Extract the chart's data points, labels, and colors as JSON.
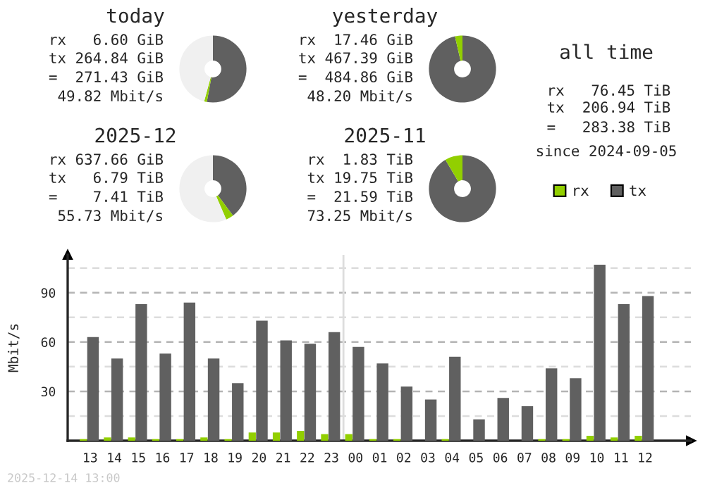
{
  "chart_data": [
    {
      "type": "donut",
      "title": "today",
      "categories": [
        null,
        null,
        null
      ],
      "values": [
        52.9,
        1.3,
        45.8
      ],
      "colors": [
        "#606060",
        "#92cf00",
        "#f0f0f0"
      ],
      "annotations": [
        "rx   6.60 GiB",
        "tx 264.84 GiB",
        "=  271.43 GiB",
        "49.82 Mbit/s"
      ]
    },
    {
      "type": "donut",
      "title": "yesterday",
      "categories": [
        null,
        null
      ],
      "values": [
        96.4,
        3.6
      ],
      "colors": [
        "#606060",
        "#92cf00"
      ],
      "annotations": [
        "rx  17.46 GiB",
        "tx 467.39 GiB",
        "=  484.86 GiB",
        "48.20 Mbit/s"
      ]
    },
    {
      "type": "other",
      "title": "all time",
      "annotations": [
        "rx   76.45 TiB",
        "tx  206.94 TiB",
        "=   283.38 TiB",
        "since 2024-09-05"
      ]
    },
    {
      "type": "donut",
      "title": "2025-12",
      "categories": [
        null,
        null,
        null
      ],
      "values": [
        39.8,
        3.7,
        56.5
      ],
      "colors": [
        "#606060",
        "#92cf00",
        "#f0f0f0"
      ],
      "annotations": [
        "rx 637.66 GiB",
        "tx   6.79 TiB",
        "=    7.41 TiB",
        "55.73 Mbit/s"
      ]
    },
    {
      "type": "donut",
      "title": "2025-11",
      "categories": [
        null,
        null
      ],
      "values": [
        91.5,
        8.5
      ],
      "colors": [
        "#606060",
        "#92cf00"
      ],
      "annotations": [
        "rx  1.83 TiB",
        "tx 19.75 TiB",
        "=  21.59 TiB",
        "73.25 Mbit/s"
      ]
    },
    {
      "type": "bar",
      "ylabel": "Mbit/s",
      "categories": [
        "13",
        "14",
        "15",
        "16",
        "17",
        "18",
        "19",
        "20",
        "21",
        "22",
        "23",
        "00",
        "01",
        "02",
        "03",
        "04",
        "05",
        "06",
        "07",
        "08",
        "09",
        "10",
        "11",
        "12"
      ],
      "series": [
        {
          "name": "rx",
          "color": "#92cf00",
          "values": [
            1,
            2,
            2,
            1,
            1,
            2,
            1,
            5,
            5,
            6,
            4,
            4,
            1,
            1,
            0,
            1,
            0,
            0,
            0,
            1,
            1,
            3,
            2,
            3
          ]
        },
        {
          "name": "tx",
          "color": "#606060",
          "values": [
            63,
            50,
            83,
            53,
            84,
            50,
            35,
            73,
            61,
            59,
            66,
            57,
            47,
            33,
            25,
            51,
            13,
            26,
            21,
            44,
            38,
            107,
            83,
            88
          ]
        }
      ],
      "ylim": [
        0,
        113
      ],
      "yticks": [
        {
          "value": 15,
          "label": null
        },
        30,
        {
          "value": 45,
          "label": null
        },
        60,
        {
          "value": 75,
          "label": null
        },
        90,
        {
          "value": 105,
          "label": null
        }
      ],
      "grid": "y",
      "legend": "top right",
      "ref_lines": [
        {
          "axis": "x",
          "value": "00",
          "color": "#dddddd"
        }
      ],
      "annotations": [
        "2025-12-14 13:00"
      ]
    }
  ]
}
